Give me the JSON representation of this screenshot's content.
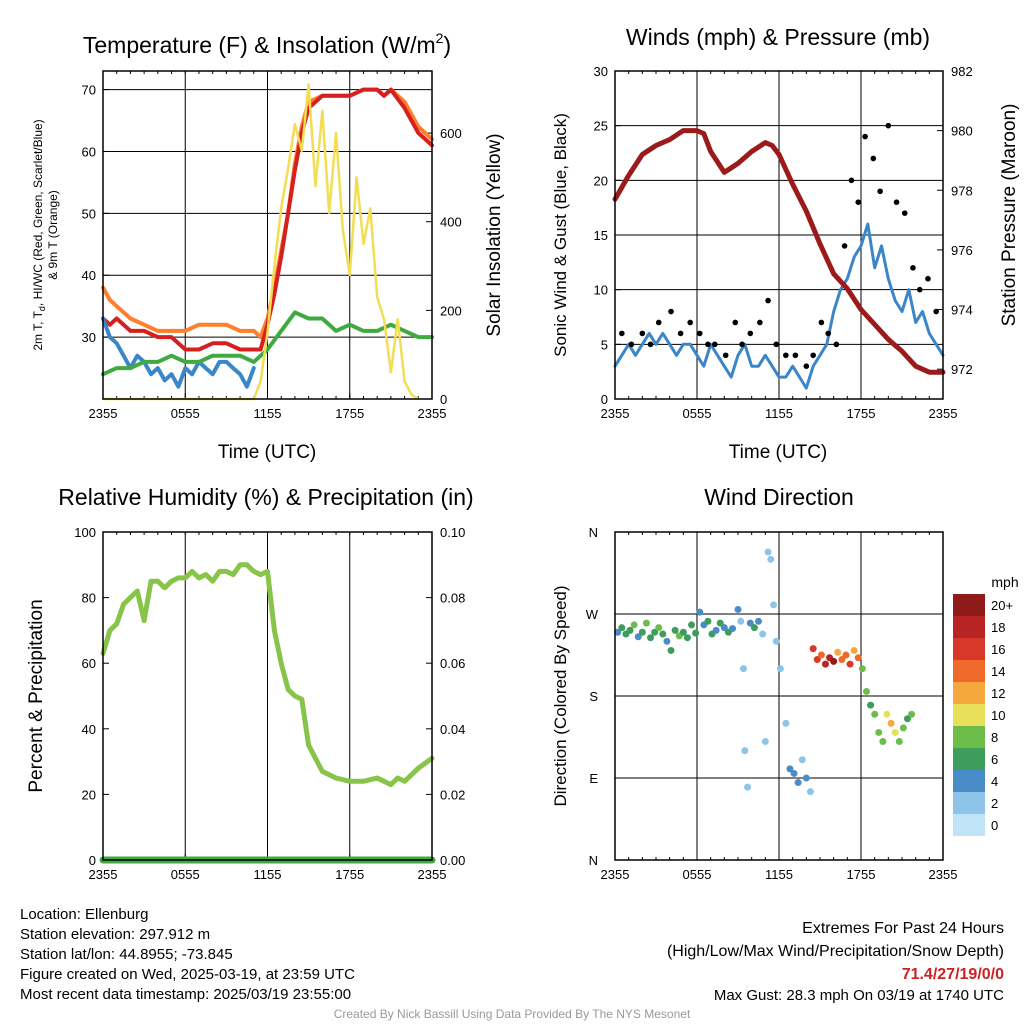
{
  "time_ticks": [
    "2355",
    "0555",
    "1155",
    "1755",
    "2355"
  ],
  "chart_data": [
    {
      "type": "line",
      "title_main": "Temperature (F) & Insolation (W/m",
      "title_sup": "2",
      "title_end": ")",
      "xlabel": "Time (UTC)",
      "ylabel_line1": "2m T, T",
      "ylabel_sub": "d",
      "ylabel_line1_end": ", HI/WC (Red, Green, Scarlet/Blue)",
      "ylabel_line2": "& 9m T (Orange)",
      "y2label": "Solar Insolation (Yellow)",
      "x_range": [
        0,
        24
      ],
      "ylim": [
        20,
        73
      ],
      "y_ticks": [
        30,
        40,
        50,
        60,
        70
      ],
      "y2lim": [
        0,
        740
      ],
      "y2_ticks": [
        0,
        200,
        400,
        600
      ],
      "series": [
        {
          "color": "#ff7f2a",
          "x": [
            0,
            0.5,
            1,
            1.5,
            2,
            3,
            4,
            5,
            6,
            7,
            8,
            9,
            10,
            11,
            11.5,
            12,
            12.5,
            13,
            13.5,
            14,
            14.5,
            15,
            16,
            17,
            18,
            19,
            20,
            20.5,
            21,
            22,
            23,
            24
          ],
          "values": [
            38,
            36,
            35,
            34,
            33,
            32,
            31,
            31,
            31,
            32,
            32,
            32,
            31,
            31,
            30,
            33,
            38,
            44,
            50,
            58,
            64,
            68,
            69,
            69,
            69,
            70,
            70,
            69,
            70,
            68,
            64,
            62
          ]
        },
        {
          "color": "#d62020",
          "x": [
            0,
            0.5,
            1,
            1.5,
            2,
            3,
            4,
            5,
            6,
            7,
            8,
            9,
            10,
            11,
            11.5,
            12,
            12.5,
            13,
            13.5,
            14,
            14.5,
            15,
            16,
            17,
            18,
            19,
            20,
            20.5,
            21,
            22,
            23,
            24
          ],
          "values": [
            33,
            32,
            33,
            32,
            31,
            31,
            30,
            30,
            28,
            28,
            29,
            29,
            28,
            28,
            28,
            32,
            37,
            43,
            50,
            57,
            63,
            67,
            69,
            69,
            69,
            70,
            70,
            69,
            70,
            67,
            63,
            61
          ]
        },
        {
          "color": "#3b86c8",
          "x": [
            0,
            0.5,
            1,
            1.5,
            2,
            2.5,
            3,
            3.5,
            4,
            4.5,
            5,
            5.5,
            6,
            6.5,
            7,
            7.5,
            8,
            8.5,
            9,
            9.5,
            10,
            10.5,
            11
          ],
          "values": [
            33,
            30,
            29,
            27,
            25,
            27,
            26,
            24,
            25,
            23,
            24,
            22,
            25,
            24,
            26,
            25,
            24,
            26,
            26,
            25,
            24,
            22,
            25
          ]
        },
        {
          "color": "#3faa3f",
          "x": [
            0,
            1,
            2,
            3,
            4,
            5,
            6,
            7,
            8,
            9,
            10,
            11,
            12,
            13,
            14,
            15,
            16,
            17,
            18,
            19,
            20,
            21,
            22,
            23,
            24
          ],
          "values": [
            24,
            25,
            25,
            26,
            26,
            27,
            26,
            26,
            27,
            27,
            27,
            26,
            28,
            31,
            34,
            33,
            33,
            31,
            32,
            31,
            31,
            32,
            31,
            30,
            30
          ]
        },
        {
          "color": "#f2dd55",
          "x": [
            0,
            10,
            11,
            11.5,
            12,
            12.5,
            13,
            13.5,
            14,
            14.5,
            15,
            15.5,
            16,
            16.5,
            17,
            17.5,
            18,
            18.5,
            19,
            19.5,
            20,
            20.5,
            21,
            21.5,
            22,
            22.5,
            23
          ],
          "values": [
            0,
            0,
            0,
            40,
            150,
            300,
            430,
            520,
            620,
            560,
            710,
            480,
            650,
            420,
            600,
            380,
            280,
            500,
            350,
            430,
            230,
            180,
            60,
            180,
            40,
            10,
            0
          ]
        }
      ]
    },
    {
      "type": "line",
      "title": "Winds (mph) & Pressure (mb)",
      "xlabel": "Time (UTC)",
      "ylabel": "Sonic Wind & Gust (Blue, Black)",
      "y2label": "Station Pressure (Maroon)",
      "x_range": [
        0,
        24
      ],
      "ylim": [
        0,
        30
      ],
      "y_ticks": [
        0,
        5,
        10,
        15,
        20,
        25,
        30
      ],
      "y2lim": [
        971,
        982
      ],
      "y2_ticks": [
        972,
        974,
        976,
        978,
        980,
        982
      ],
      "series": [
        {
          "color": "#3b86c8",
          "x": [
            0,
            0.5,
            1,
            1.5,
            2,
            2.5,
            3,
            3.5,
            4,
            4.5,
            5,
            5.5,
            6,
            6.5,
            7,
            7.5,
            8,
            8.5,
            9,
            9.5,
            10,
            10.5,
            11,
            11.5,
            12,
            12.5,
            13,
            13.5,
            14,
            14.5,
            15,
            15.5,
            16,
            16.5,
            17,
            17.5,
            18,
            18.5,
            19,
            19.5,
            20,
            20.5,
            21,
            21.5,
            22,
            22.5,
            23,
            23.5,
            24
          ],
          "values": [
            3,
            4,
            5,
            4,
            5,
            6,
            5,
            6,
            5,
            4,
            5,
            5,
            4,
            3,
            5,
            4,
            3,
            2,
            4,
            5,
            3,
            3,
            4,
            3,
            2,
            2,
            3,
            2,
            1,
            3,
            4,
            5,
            8,
            10,
            11,
            13,
            14,
            16,
            12,
            14,
            11,
            9,
            8,
            10,
            7,
            8,
            6,
            5,
            4
          ]
        },
        {
          "color": "#9b1a1a",
          "x": [
            0,
            1,
            2,
            3,
            4,
            5,
            6,
            6.5,
            7,
            8,
            9,
            10,
            11,
            11.5,
            12,
            13,
            14,
            15,
            16,
            17,
            18,
            19,
            20,
            21,
            22,
            23,
            24
          ],
          "values": [
            977.7,
            978.5,
            979.2,
            979.5,
            979.7,
            980.0,
            980.0,
            979.9,
            979.3,
            978.6,
            978.9,
            979.3,
            979.6,
            979.5,
            979.2,
            978.2,
            977.3,
            976.2,
            975.2,
            974.7,
            974.0,
            973.5,
            973.0,
            972.6,
            972.1,
            971.9,
            971.9
          ]
        },
        {
          "color": "#000000",
          "x": [
            0.5,
            1.2,
            2,
            2.6,
            3.2,
            4.1,
            4.8,
            5.5,
            6.2,
            6.8,
            7.3,
            8.1,
            8.8,
            9.3,
            9.9,
            10.6,
            11.2,
            11.8,
            12.5,
            13.2,
            14,
            14.5,
            15.1,
            15.6,
            16.2,
            16.8,
            17.3,
            17.8,
            18.3,
            18.9,
            19.4,
            20,
            20.6,
            21.2,
            21.8,
            22.3,
            22.9,
            23.5
          ],
          "values": [
            6,
            5,
            6,
            5,
            7,
            8,
            6,
            7,
            6,
            5,
            5,
            4,
            7,
            5,
            6,
            7,
            9,
            5,
            4,
            4,
            3,
            4,
            7,
            6,
            5,
            14,
            20,
            18,
            24,
            22,
            19,
            25,
            18,
            17,
            12,
            10,
            11,
            8
          ]
        }
      ]
    },
    {
      "type": "line",
      "title": "Relative Humidity (%) & Precipitation (in)",
      "ylabel": "Percent & Precipitation",
      "x_range": [
        0,
        24
      ],
      "ylim": [
        0,
        100
      ],
      "y_ticks": [
        0,
        20,
        40,
        60,
        80,
        100
      ],
      "y2lim": [
        0,
        0.1
      ],
      "y2_ticks": [
        "0.00",
        "0.02",
        "0.04",
        "0.06",
        "0.08",
        "0.10"
      ],
      "series": [
        {
          "color": "#88c34a",
          "x": [
            0,
            0.5,
            1,
            1.5,
            2,
            2.5,
            3,
            3.5,
            4,
            4.5,
            5,
            5.5,
            6,
            6.5,
            7,
            7.5,
            8,
            8.5,
            9,
            9.5,
            10,
            10.5,
            11,
            11.5,
            12,
            12.5,
            13,
            13.5,
            14,
            14.5,
            15,
            16,
            17,
            18,
            19,
            20,
            21,
            21.5,
            22,
            23,
            24
          ],
          "values": [
            63,
            70,
            72,
            78,
            80,
            82,
            73,
            85,
            85,
            83,
            85,
            86,
            86,
            88,
            86,
            87,
            85,
            88,
            88,
            87,
            90,
            90,
            88,
            87,
            88,
            70,
            60,
            52,
            50,
            49,
            35,
            27,
            25,
            24,
            24,
            25,
            23,
            25,
            24,
            28,
            31
          ]
        },
        {
          "color": "#3faa3f",
          "x": [
            0,
            24
          ],
          "values": [
            0,
            0
          ]
        }
      ]
    },
    {
      "type": "scatter",
      "title": "Wind Direction",
      "ylabel": "Direction (Colored By Speed)",
      "x_range": [
        0,
        24
      ],
      "ylim": [
        0,
        360
      ],
      "y_ticks": [
        "N",
        "E",
        "S",
        "W",
        "N"
      ],
      "colorbar_title": "mph",
      "colorbar_labels": [
        "0",
        "2",
        "4",
        "6",
        "8",
        "10",
        "12",
        "14",
        "16",
        "18",
        "20+"
      ],
      "colorbar_colors": [
        "#bfe3f7",
        "#8ec4ea",
        "#4a8cc8",
        "#3c9e5a",
        "#6dbd4b",
        "#e8e05a",
        "#f5a83e",
        "#ef6a2a",
        "#d8382a",
        "#b82424",
        "#8e1a1a"
      ],
      "points": [
        [
          0.2,
          250,
          4
        ],
        [
          0.5,
          255,
          6
        ],
        [
          0.8,
          248,
          5
        ],
        [
          1.1,
          252,
          6
        ],
        [
          1.4,
          258,
          7
        ],
        [
          1.7,
          245,
          4
        ],
        [
          2,
          250,
          6
        ],
        [
          2.3,
          260,
          7
        ],
        [
          2.6,
          244,
          5
        ],
        [
          2.9,
          250,
          6
        ],
        [
          3.2,
          255,
          7
        ],
        [
          3.5,
          248,
          6
        ],
        [
          3.8,
          240,
          4
        ],
        [
          4.1,
          230,
          5
        ],
        [
          4.4,
          252,
          6
        ],
        [
          4.7,
          246,
          7
        ],
        [
          5,
          250,
          6
        ],
        [
          5.3,
          244,
          6
        ],
        [
          5.6,
          258,
          5
        ],
        [
          5.9,
          249,
          6
        ],
        [
          6.2,
          272,
          4
        ],
        [
          6.5,
          258,
          4
        ],
        [
          6.8,
          262,
          6
        ],
        [
          7.1,
          248,
          5
        ],
        [
          7.4,
          252,
          4
        ],
        [
          7.7,
          260,
          6
        ],
        [
          8,
          255,
          4
        ],
        [
          8.3,
          250,
          6
        ],
        [
          8.6,
          254,
          4
        ],
        [
          9,
          275,
          4
        ],
        [
          9.2,
          262,
          2
        ],
        [
          9.4,
          210,
          2
        ],
        [
          9.5,
          120,
          2
        ],
        [
          9.7,
          80,
          1
        ],
        [
          9.9,
          260,
          4
        ],
        [
          10.2,
          255,
          6
        ],
        [
          10.5,
          262,
          4
        ],
        [
          10.8,
          248,
          2
        ],
        [
          11,
          130,
          2
        ],
        [
          11.2,
          338,
          1
        ],
        [
          11.4,
          330,
          1
        ],
        [
          11.6,
          280,
          2
        ],
        [
          11.8,
          240,
          2
        ],
        [
          12.1,
          210,
          1
        ],
        [
          12.5,
          150,
          2
        ],
        [
          12.8,
          100,
          4
        ],
        [
          13.1,
          95,
          4
        ],
        [
          13.4,
          85,
          4
        ],
        [
          13.7,
          110,
          2
        ],
        [
          14,
          90,
          4
        ],
        [
          14.3,
          75,
          2
        ],
        [
          14.5,
          232,
          15
        ],
        [
          14.8,
          220,
          16
        ],
        [
          15.1,
          225,
          14
        ],
        [
          15.4,
          215,
          18
        ],
        [
          15.7,
          222,
          17
        ],
        [
          16,
          218,
          19
        ],
        [
          16.3,
          228,
          12
        ],
        [
          16.6,
          220,
          14
        ],
        [
          16.9,
          225,
          13
        ],
        [
          17.2,
          215,
          16
        ],
        [
          17.5,
          230,
          12
        ],
        [
          17.8,
          222,
          14
        ],
        [
          18.1,
          210,
          8
        ],
        [
          18.4,
          185,
          7
        ],
        [
          18.7,
          170,
          6
        ],
        [
          19,
          160,
          7
        ],
        [
          19.3,
          140,
          8
        ],
        [
          19.6,
          130,
          7
        ],
        [
          19.9,
          160,
          10
        ],
        [
          20.2,
          150,
          11
        ],
        [
          20.5,
          140,
          9
        ],
        [
          20.8,
          130,
          8
        ],
        [
          21.1,
          145,
          7
        ],
        [
          21.4,
          155,
          6
        ],
        [
          21.7,
          160,
          7
        ]
      ]
    }
  ],
  "info": {
    "location": "Location: Ellenburg",
    "elevation": "Station elevation: 297.912 m",
    "latlon": "Station lat/lon: 44.8955; -73.845",
    "created": "Figure created on Wed, 2025-03-19, at 23:59 UTC",
    "recent": "Most recent data timestamp: 2025/03/19 23:55:00"
  },
  "extremes": {
    "title": "Extremes For Past 24 Hours",
    "subtitle": "(High/Low/Max Wind/Precipitation/Snow Depth)",
    "values": "71.4/27/19/0/0",
    "gust": "Max Gust: 28.3 mph On 03/19 at 1740 UTC"
  },
  "credit": "Created By Nick Bassill Using Data Provided By The NYS Mesonet"
}
